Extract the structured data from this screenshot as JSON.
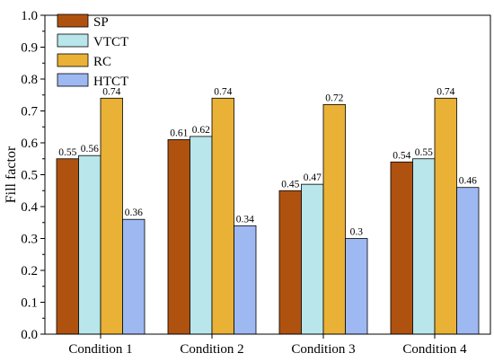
{
  "chart_data": {
    "type": "bar",
    "title": "",
    "xlabel": "",
    "ylabel": "Fill factor",
    "ylim": [
      0.0,
      1.0
    ],
    "yticks": [
      "0.0",
      "0.1",
      "0.2",
      "0.3",
      "0.4",
      "0.5",
      "0.6",
      "0.7",
      "0.8",
      "0.9",
      "1.0"
    ],
    "categories": [
      "Condition 1",
      "Condition 2",
      "Condition 3",
      "Condition 4"
    ],
    "grid": false,
    "legend_position": "top-left",
    "series": [
      {
        "name": "SP",
        "color": "#b0520f",
        "values": [
          0.55,
          0.61,
          0.45,
          0.54
        ],
        "labels": [
          "0.55",
          "0.61",
          "0.45",
          "0.54"
        ]
      },
      {
        "name": "VTCT",
        "color": "#b8e6ea",
        "values": [
          0.56,
          0.62,
          0.47,
          0.55
        ],
        "labels": [
          "0.56",
          "0.62",
          "0.47",
          "0.55"
        ]
      },
      {
        "name": "RC",
        "color": "#e9b135",
        "values": [
          0.74,
          0.74,
          0.72,
          0.74
        ],
        "labels": [
          "0.74",
          "0.74",
          "0.72",
          "0.74"
        ]
      },
      {
        "name": "HTCT",
        "color": "#9eb8f2",
        "values": [
          0.36,
          0.34,
          0.3,
          0.46
        ],
        "labels": [
          "0.36",
          "0.34",
          "0.3",
          "0.46"
        ]
      }
    ]
  }
}
